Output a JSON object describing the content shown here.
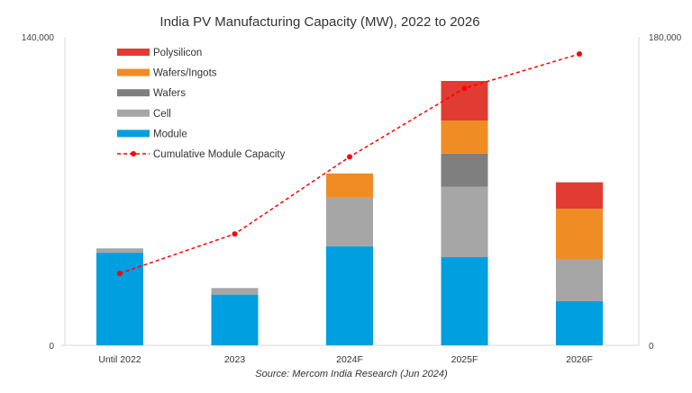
{
  "chart_data": {
    "type": "bar",
    "stacked": true,
    "title": "India PV Manufacturing Capacity (MW), 2022 to 2026",
    "source": "Source: Mercom India Research (Jun 2024)",
    "categories": [
      "Until 2022",
      "2023",
      "2024F",
      "2025F",
      "2026F"
    ],
    "ylim": [
      0,
      140000
    ],
    "y2lim": [
      0,
      180000
    ],
    "ytick_labels": [
      "0",
      "140,000"
    ],
    "y2tick_labels": [
      "0",
      "180,000"
    ],
    "grid": false,
    "legend_placement": "top-left",
    "series": [
      {
        "name": "Module",
        "color": "#009fdf",
        "values": [
          42000,
          23000,
          45000,
          40000,
          20000
        ]
      },
      {
        "name": "Cell",
        "color": "#a6a6a6",
        "values": [
          2000,
          3000,
          22000,
          32000,
          19000
        ]
      },
      {
        "name": "Wafers",
        "color": "#7f7f7f",
        "values": [
          0,
          0,
          0,
          15000,
          0
        ]
      },
      {
        "name": "Wafers/Ingots",
        "color": "#ef8c24",
        "values": [
          0,
          0,
          11000,
          15000,
          23000
        ]
      },
      {
        "name": "Polysilicon",
        "color": "#e03c31",
        "values": [
          0,
          0,
          0,
          18000,
          12000
        ]
      }
    ],
    "line_series": {
      "name": "Cumulative Module Capacity",
      "color": "#ff0000",
      "axis": "right",
      "style": "dashed",
      "values": [
        42000,
        65000,
        110000,
        150000,
        170000
      ]
    }
  }
}
